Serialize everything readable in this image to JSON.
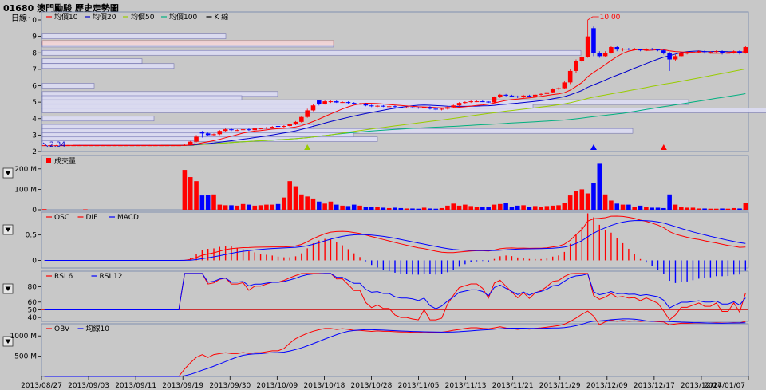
{
  "header": {
    "title": "01680 澳門勵駿  歷史走勢圖"
  },
  "colors": {
    "up": "#ff0000",
    "down": "#0000ff",
    "ma10": "#ff0000",
    "ma20": "#0000cc",
    "ma50": "#99cc00",
    "ma100": "#00b080",
    "panelBorder": "#7f8fb0"
  },
  "chart_data": [
    {
      "type": "candlestick",
      "period_label": "日線",
      "legend": [
        {
          "name": "均價10",
          "color": "#ff0000"
        },
        {
          "name": "均價20",
          "color": "#0000cc"
        },
        {
          "name": "均價50",
          "color": "#99cc00"
        },
        {
          "name": "均價100",
          "color": "#00b080"
        },
        {
          "name": "K 線",
          "color": "#000000"
        }
      ],
      "ylim": [
        2,
        10
      ],
      "y_ticks": [
        "2",
        "3",
        "4",
        "5",
        "6",
        "7",
        "8",
        "9",
        "10"
      ],
      "annotations": {
        "high_label": "10.00",
        "low_label": "2.34"
      },
      "close": [
        2.38,
        2.38,
        2.38,
        2.38,
        2.38,
        2.38,
        2.38,
        2.38,
        2.38,
        2.38,
        2.38,
        2.38,
        2.38,
        2.38,
        2.38,
        2.38,
        2.38,
        2.38,
        2.38,
        2.38,
        2.38,
        2.38,
        2.38,
        2.38,
        2.4,
        2.6,
        2.9,
        3.1,
        3.0,
        3.05,
        3.25,
        3.35,
        3.3,
        3.3,
        3.35,
        3.3,
        3.4,
        3.4,
        3.45,
        3.5,
        3.5,
        3.55,
        3.65,
        3.8,
        4.1,
        4.5,
        4.8,
        4.9,
        5.05,
        5.05,
        4.98,
        5.0,
        4.95,
        4.9,
        4.9,
        4.8,
        4.75,
        4.78,
        4.75,
        4.75,
        4.7,
        4.68,
        4.68,
        4.67,
        4.65,
        4.7,
        4.6,
        4.55,
        4.6,
        4.7,
        4.8,
        4.95,
        5.0,
        5.05,
        5.05,
        5.03,
        4.98,
        5.3,
        5.45,
        5.4,
        5.35,
        5.3,
        5.4,
        5.35,
        5.45,
        5.5,
        5.6,
        5.8,
        5.85,
        6.2,
        6.9,
        7.5,
        7.75,
        9.0,
        8.0,
        7.8,
        8.0,
        8.35,
        8.2,
        8.25,
        8.2,
        8.22,
        8.15,
        8.25,
        8.2,
        8.15,
        8.0,
        7.6,
        7.8,
        8.0,
        8.0,
        8.05,
        8.1,
        8.05,
        8.05,
        8.1,
        8.0,
        8.0,
        8.1,
        8.0,
        8.35
      ],
      "open": [
        2.38,
        2.38,
        2.38,
        2.38,
        2.38,
        2.38,
        2.38,
        2.38,
        2.38,
        2.38,
        2.38,
        2.38,
        2.38,
        2.38,
        2.38,
        2.38,
        2.38,
        2.38,
        2.38,
        2.38,
        2.38,
        2.38,
        2.38,
        2.38,
        2.36,
        2.4,
        2.6,
        3.2,
        3.1,
        3.0,
        3.05,
        3.25,
        3.35,
        3.3,
        3.3,
        3.35,
        3.3,
        3.4,
        3.4,
        3.45,
        3.55,
        3.5,
        3.55,
        3.65,
        3.8,
        4.1,
        4.5,
        5.1,
        4.9,
        5.05,
        5.05,
        4.98,
        5.0,
        4.95,
        4.9,
        4.9,
        4.8,
        4.75,
        4.78,
        4.75,
        4.75,
        4.7,
        4.68,
        4.68,
        4.67,
        4.65,
        4.7,
        4.6,
        4.55,
        4.6,
        4.7,
        4.8,
        4.95,
        5.0,
        5.05,
        5.05,
        5.03,
        4.98,
        5.3,
        5.45,
        5.4,
        5.35,
        5.3,
        5.4,
        5.35,
        5.45,
        5.5,
        5.6,
        5.8,
        5.85,
        6.2,
        6.9,
        7.5,
        7.75,
        9.5,
        8.0,
        7.8,
        8.0,
        8.35,
        8.2,
        8.25,
        8.2,
        8.22,
        8.15,
        8.25,
        8.2,
        8.15,
        8.0,
        7.6,
        7.8,
        8.0,
        8.0,
        8.05,
        8.1,
        8.05,
        8.05,
        8.1,
        8.0,
        8.0,
        8.1,
        8.0
      ],
      "high": [
        2.4,
        2.4,
        2.4,
        2.4,
        2.4,
        2.4,
        2.4,
        2.4,
        2.4,
        2.4,
        2.4,
        2.4,
        2.4,
        2.4,
        2.4,
        2.4,
        2.4,
        2.4,
        2.4,
        2.4,
        2.4,
        2.4,
        2.4,
        2.4,
        2.45,
        2.65,
        3.0,
        3.25,
        3.15,
        3.1,
        3.3,
        3.4,
        3.4,
        3.35,
        3.4,
        3.4,
        3.45,
        3.45,
        3.5,
        3.55,
        3.6,
        3.6,
        3.7,
        3.85,
        4.15,
        4.6,
        4.9,
        5.15,
        5.1,
        5.1,
        5.1,
        5.05,
        5.05,
        5.0,
        4.95,
        4.95,
        4.85,
        4.82,
        4.82,
        4.8,
        4.8,
        4.75,
        4.72,
        4.72,
        4.7,
        4.75,
        4.75,
        4.65,
        4.65,
        4.75,
        4.85,
        5.0,
        5.05,
        5.1,
        5.1,
        5.1,
        5.05,
        5.35,
        5.5,
        5.5,
        5.45,
        5.4,
        5.45,
        5.45,
        5.5,
        5.55,
        5.65,
        5.85,
        5.9,
        6.3,
        7.0,
        7.6,
        7.9,
        10.0,
        9.6,
        8.1,
        8.1,
        8.4,
        8.4,
        8.3,
        8.3,
        8.3,
        8.25,
        8.3,
        8.3,
        8.25,
        8.2,
        8.05,
        7.9,
        8.05,
        8.1,
        8.1,
        8.15,
        8.15,
        8.1,
        8.15,
        8.15,
        8.05,
        8.15,
        8.15,
        8.4
      ],
      "low": [
        2.34,
        2.36,
        2.36,
        2.36,
        2.36,
        2.36,
        2.36,
        2.36,
        2.36,
        2.36,
        2.36,
        2.36,
        2.36,
        2.36,
        2.36,
        2.36,
        2.36,
        2.36,
        2.36,
        2.36,
        2.36,
        2.36,
        2.36,
        2.36,
        2.34,
        2.38,
        2.55,
        2.85,
        2.95,
        2.95,
        3.0,
        3.2,
        3.25,
        3.25,
        3.25,
        3.25,
        3.25,
        3.35,
        3.35,
        3.4,
        3.45,
        3.45,
        3.5,
        3.6,
        3.75,
        4.05,
        4.45,
        4.8,
        4.85,
        4.95,
        4.95,
        4.95,
        4.9,
        4.85,
        4.85,
        4.75,
        4.7,
        4.7,
        4.7,
        4.7,
        4.65,
        4.65,
        4.62,
        4.62,
        4.6,
        4.6,
        4.55,
        4.5,
        4.5,
        4.55,
        4.65,
        4.75,
        4.9,
        4.95,
        5.0,
        5.0,
        4.95,
        4.95,
        5.25,
        5.35,
        5.3,
        5.25,
        5.25,
        5.3,
        5.3,
        5.4,
        5.45,
        5.55,
        5.75,
        5.8,
        6.1,
        6.8,
        7.4,
        7.7,
        7.8,
        7.7,
        7.75,
        7.95,
        8.1,
        8.1,
        8.15,
        8.15,
        8.1,
        8.1,
        8.15,
        8.1,
        7.9,
        6.9,
        7.5,
        7.75,
        7.9,
        7.95,
        8.0,
        7.95,
        7.95,
        8.0,
        7.9,
        7.9,
        7.95,
        7.9,
        7.95
      ]
    },
    {
      "type": "bar",
      "legend": [
        {
          "name": "成交量",
          "color": "#ff0000"
        }
      ],
      "y_ticks": [
        "0",
        "100 M",
        "200 M"
      ],
      "ylim": [
        0,
        250
      ],
      "values": [
        3,
        0,
        0,
        0,
        0,
        0,
        0,
        2,
        0,
        0,
        0,
        0,
        0,
        0,
        0,
        0,
        0,
        0,
        0,
        0,
        0,
        0,
        0,
        0,
        195,
        160,
        140,
        70,
        72,
        75,
        25,
        22,
        22,
        20,
        28,
        25,
        20,
        22,
        25,
        25,
        28,
        60,
        140,
        115,
        75,
        65,
        55,
        40,
        30,
        40,
        25,
        20,
        18,
        25,
        20,
        15,
        12,
        12,
        10,
        8,
        10,
        8,
        6,
        6,
        5,
        10,
        6,
        5,
        8,
        20,
        30,
        20,
        25,
        18,
        15,
        15,
        12,
        25,
        28,
        32,
        15,
        20,
        22,
        15,
        18,
        15,
        18,
        20,
        22,
        35,
        70,
        90,
        100,
        80,
        130,
        225,
        75,
        45,
        30,
        25,
        25,
        15,
        20,
        15,
        10,
        10,
        8,
        75,
        25,
        15,
        10,
        10,
        6,
        6,
        5,
        5,
        6,
        5,
        8,
        6,
        35
      ]
    },
    {
      "type": "line",
      "legend": [
        {
          "name": "OSC",
          "color": "#ff0000"
        },
        {
          "name": "DIF",
          "color": "#ff0000"
        },
        {
          "name": "MACD",
          "color": "#0000ff"
        }
      ],
      "y_ticks": [
        "0",
        "0.5"
      ],
      "ylim": [
        -0.15,
        0.95
      ]
    },
    {
      "type": "line",
      "legend": [
        {
          "name": "RSI 6",
          "color": "#ff0000"
        },
        {
          "name": "RSI 12",
          "color": "#0000ff"
        }
      ],
      "y_ticks": [
        "40",
        "50",
        "60",
        "80"
      ],
      "ylim": [
        35,
        100
      ],
      "reference_line": 50
    },
    {
      "type": "line",
      "legend": [
        {
          "name": "OBV",
          "color": "#ff0000"
        },
        {
          "name": "均線10",
          "color": "#0000ff"
        }
      ],
      "y_ticks": [
        "500 M",
        "1000 M"
      ],
      "ylim": [
        0,
        1300
      ]
    }
  ],
  "x_axis_labels": [
    "2013/08/27",
    "2013/09/03",
    "2013/09/11",
    "2013/09/19",
    "2013/09/30",
    "2013/10/09",
    "2013/10/18",
    "2013/10/28",
    "2013/11/05",
    "2013/11/13",
    "2013/11/21",
    "2013/11/29",
    "2013/12/09",
    "2013/12/17",
    "2013/12/27",
    "2014/01/07"
  ]
}
